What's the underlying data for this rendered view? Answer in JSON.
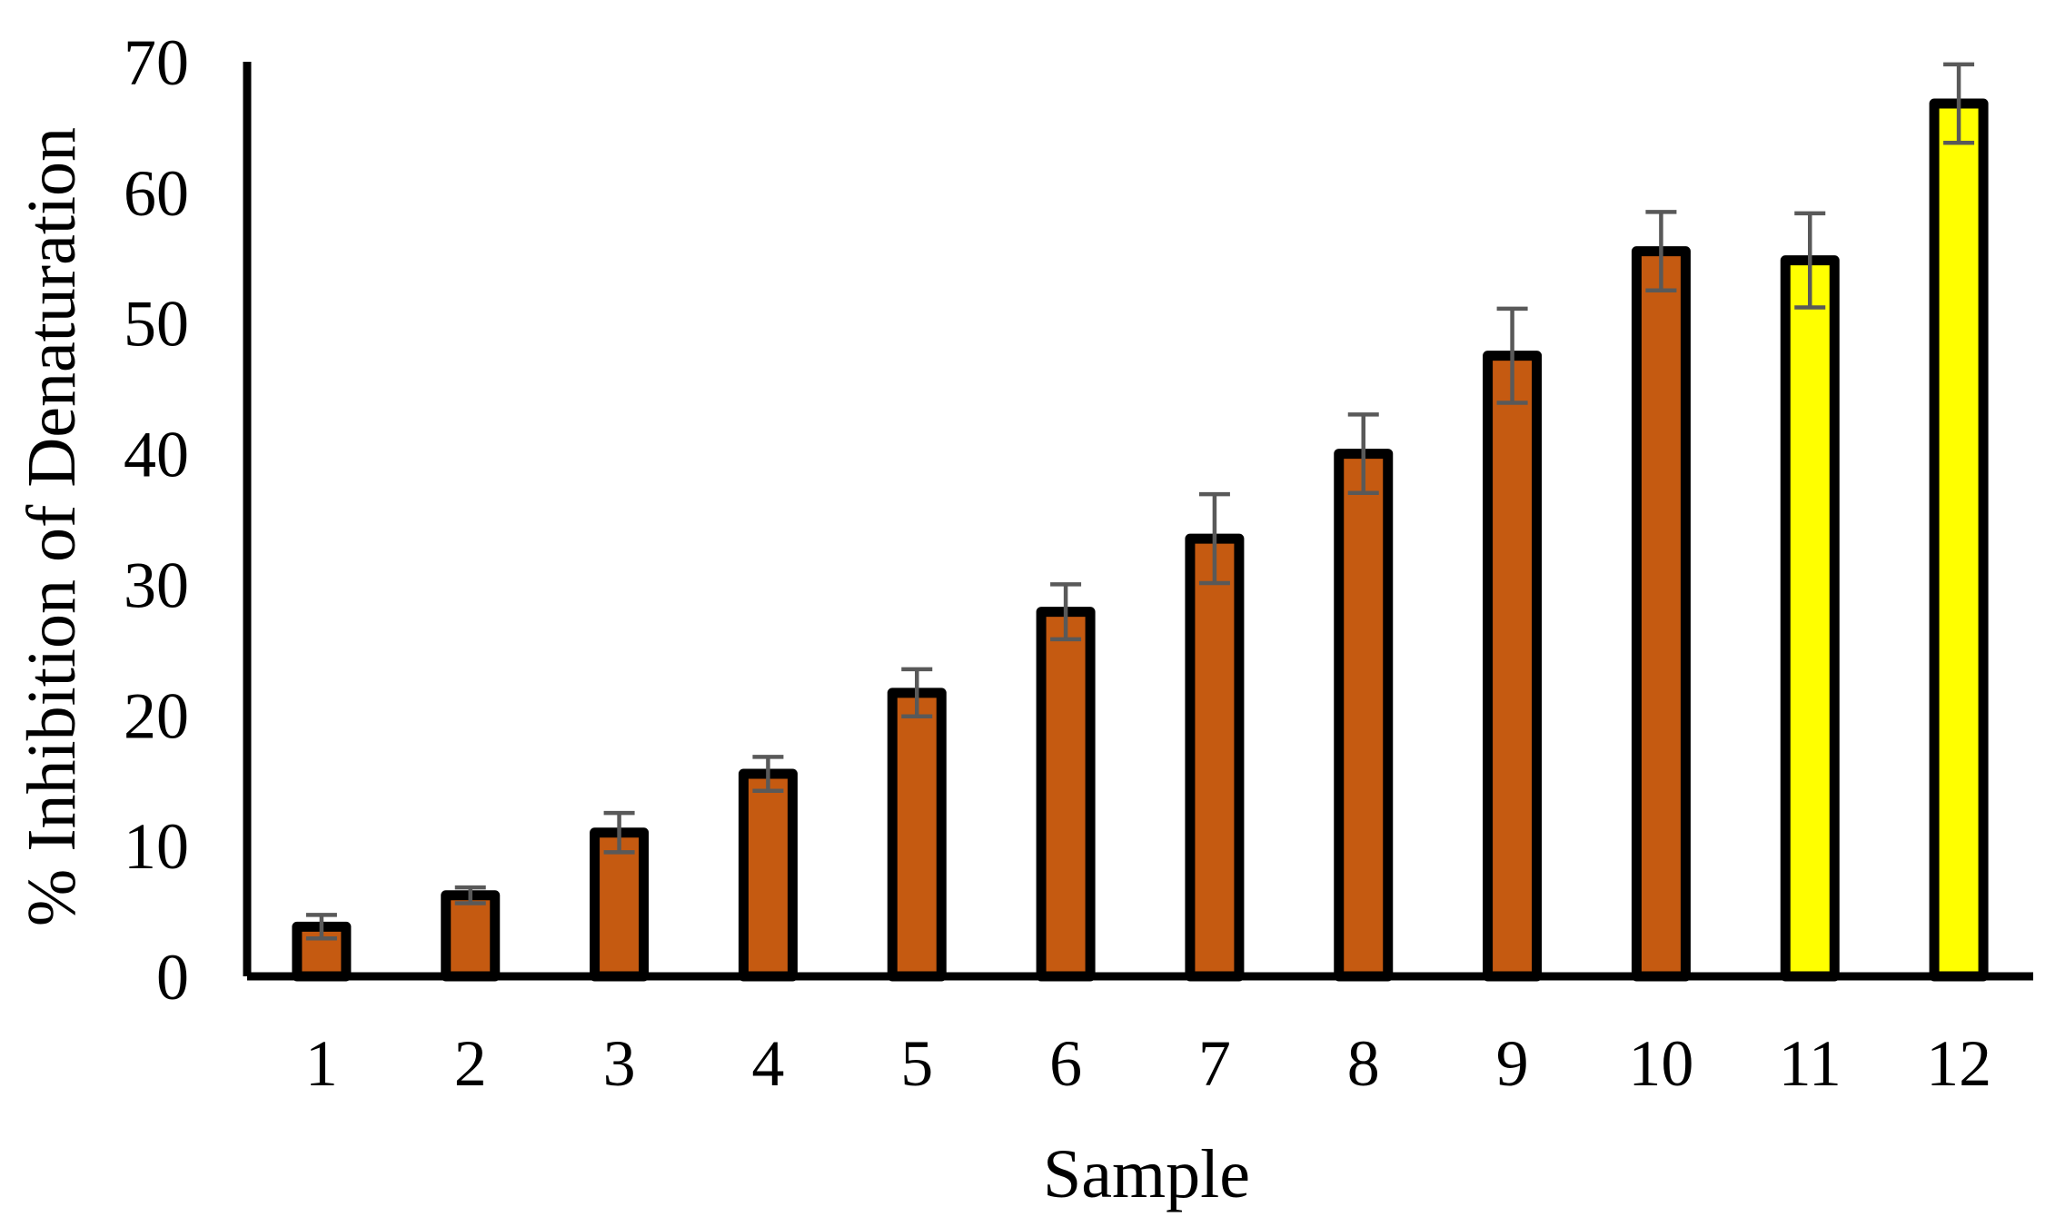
{
  "chart_data": {
    "type": "bar",
    "title": "",
    "xlabel": "Sample",
    "ylabel": "% Inhibition of Denaturation",
    "categories": [
      "1",
      "2",
      "3",
      "4",
      "5",
      "6",
      "7",
      "8",
      "9",
      "10",
      "11",
      "12"
    ],
    "values": [
      3.8,
      6.2,
      11.0,
      15.5,
      21.7,
      27.9,
      33.5,
      40.0,
      47.5,
      55.5,
      54.8,
      66.8
    ],
    "errors": [
      0.9,
      0.6,
      1.5,
      1.3,
      1.8,
      2.1,
      3.4,
      3.0,
      3.6,
      3.0,
      3.6,
      3.0
    ],
    "bar_colors": [
      "#c55a11",
      "#c55a11",
      "#c55a11",
      "#c55a11",
      "#c55a11",
      "#c55a11",
      "#c55a11",
      "#c55a11",
      "#c55a11",
      "#c55a11",
      "#ffff00",
      "#ffff00"
    ],
    "bar_outline_color": "#000000",
    "error_bar_color": "#595959",
    "ylim": [
      0,
      70
    ],
    "yticks": [
      0,
      10,
      20,
      30,
      40,
      50,
      60,
      70
    ],
    "grid": false,
    "legend": "none"
  }
}
